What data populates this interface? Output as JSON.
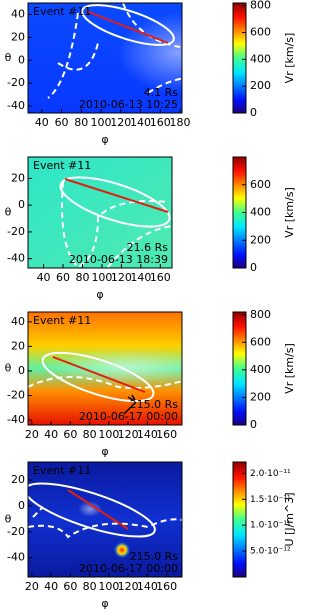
{
  "chart_data": [
    {
      "type": "heatmap",
      "event": "Event #11",
      "radius": "4.1 Rs",
      "date": "2010-06-13 10:25",
      "xlabel": "φ",
      "ylabel": "θ",
      "colorbar_label": "Vr [km/s]",
      "xlim": [
        26,
        182
      ],
      "ylim": [
        -46,
        50
      ],
      "xticks": [
        40,
        60,
        80,
        100,
        120,
        140,
        160,
        180
      ],
      "yticks": [
        -40,
        -20,
        0,
        20,
        40
      ],
      "zlim": [
        0,
        820
      ],
      "zticks": [
        0,
        200,
        400,
        600,
        800
      ]
    },
    {
      "type": "heatmap",
      "event": "Event #11",
      "radius": "21.6 Rs",
      "date": "2010-06-13 18:39",
      "xlabel": "φ",
      "ylabel": "θ",
      "colorbar_label": "Vr [km/s]",
      "xlim": [
        24,
        172
      ],
      "ylim": [
        -47,
        36
      ],
      "xticks": [
        40,
        60,
        80,
        100,
        120,
        140,
        160
      ],
      "yticks": [
        -40,
        -20,
        0,
        20
      ],
      "zlim": [
        0,
        800
      ],
      "zticks": [
        0,
        200,
        400,
        600
      ]
    },
    {
      "type": "heatmap",
      "event": "Event #11",
      "radius": "215.0 Rs",
      "date": "2010-06-17 00:00",
      "xlabel": "φ",
      "ylabel": "θ",
      "colorbar_label": "Vr [km/s]",
      "xlim": [
        16,
        176
      ],
      "ylim": [
        -44,
        48
      ],
      "xticks": [
        20,
        40,
        60,
        80,
        100,
        120,
        140,
        160
      ],
      "yticks": [
        -40,
        -20,
        0,
        20,
        40
      ],
      "zlim": [
        0,
        820
      ],
      "zticks": [
        0,
        200,
        400,
        600,
        800
      ]
    },
    {
      "type": "heatmap",
      "event": "Event #11",
      "radius": "215.0 Rs",
      "date": "2010-06-17 00:00",
      "xlabel": "φ",
      "ylabel": "θ",
      "colorbar_label": "U [J/m^3]",
      "xlim": [
        16,
        176
      ],
      "ylim": [
        -55,
        34
      ],
      "xticks": [
        20,
        40,
        60,
        80,
        100,
        120,
        140,
        160
      ],
      "yticks": [
        -40,
        -20,
        0,
        20
      ],
      "zlim": [
        0,
        2.22e-11
      ],
      "zticks": [
        {
          "value": 5e-12,
          "label": "5.0·10⁻¹²"
        },
        {
          "value": 1e-11,
          "label": "1.0·10⁻¹¹"
        },
        {
          "value": 1.5e-11,
          "label": "1.5·10⁻¹¹"
        },
        {
          "value": 2e-11,
          "label": "2.0·10⁻¹¹"
        }
      ]
    }
  ]
}
